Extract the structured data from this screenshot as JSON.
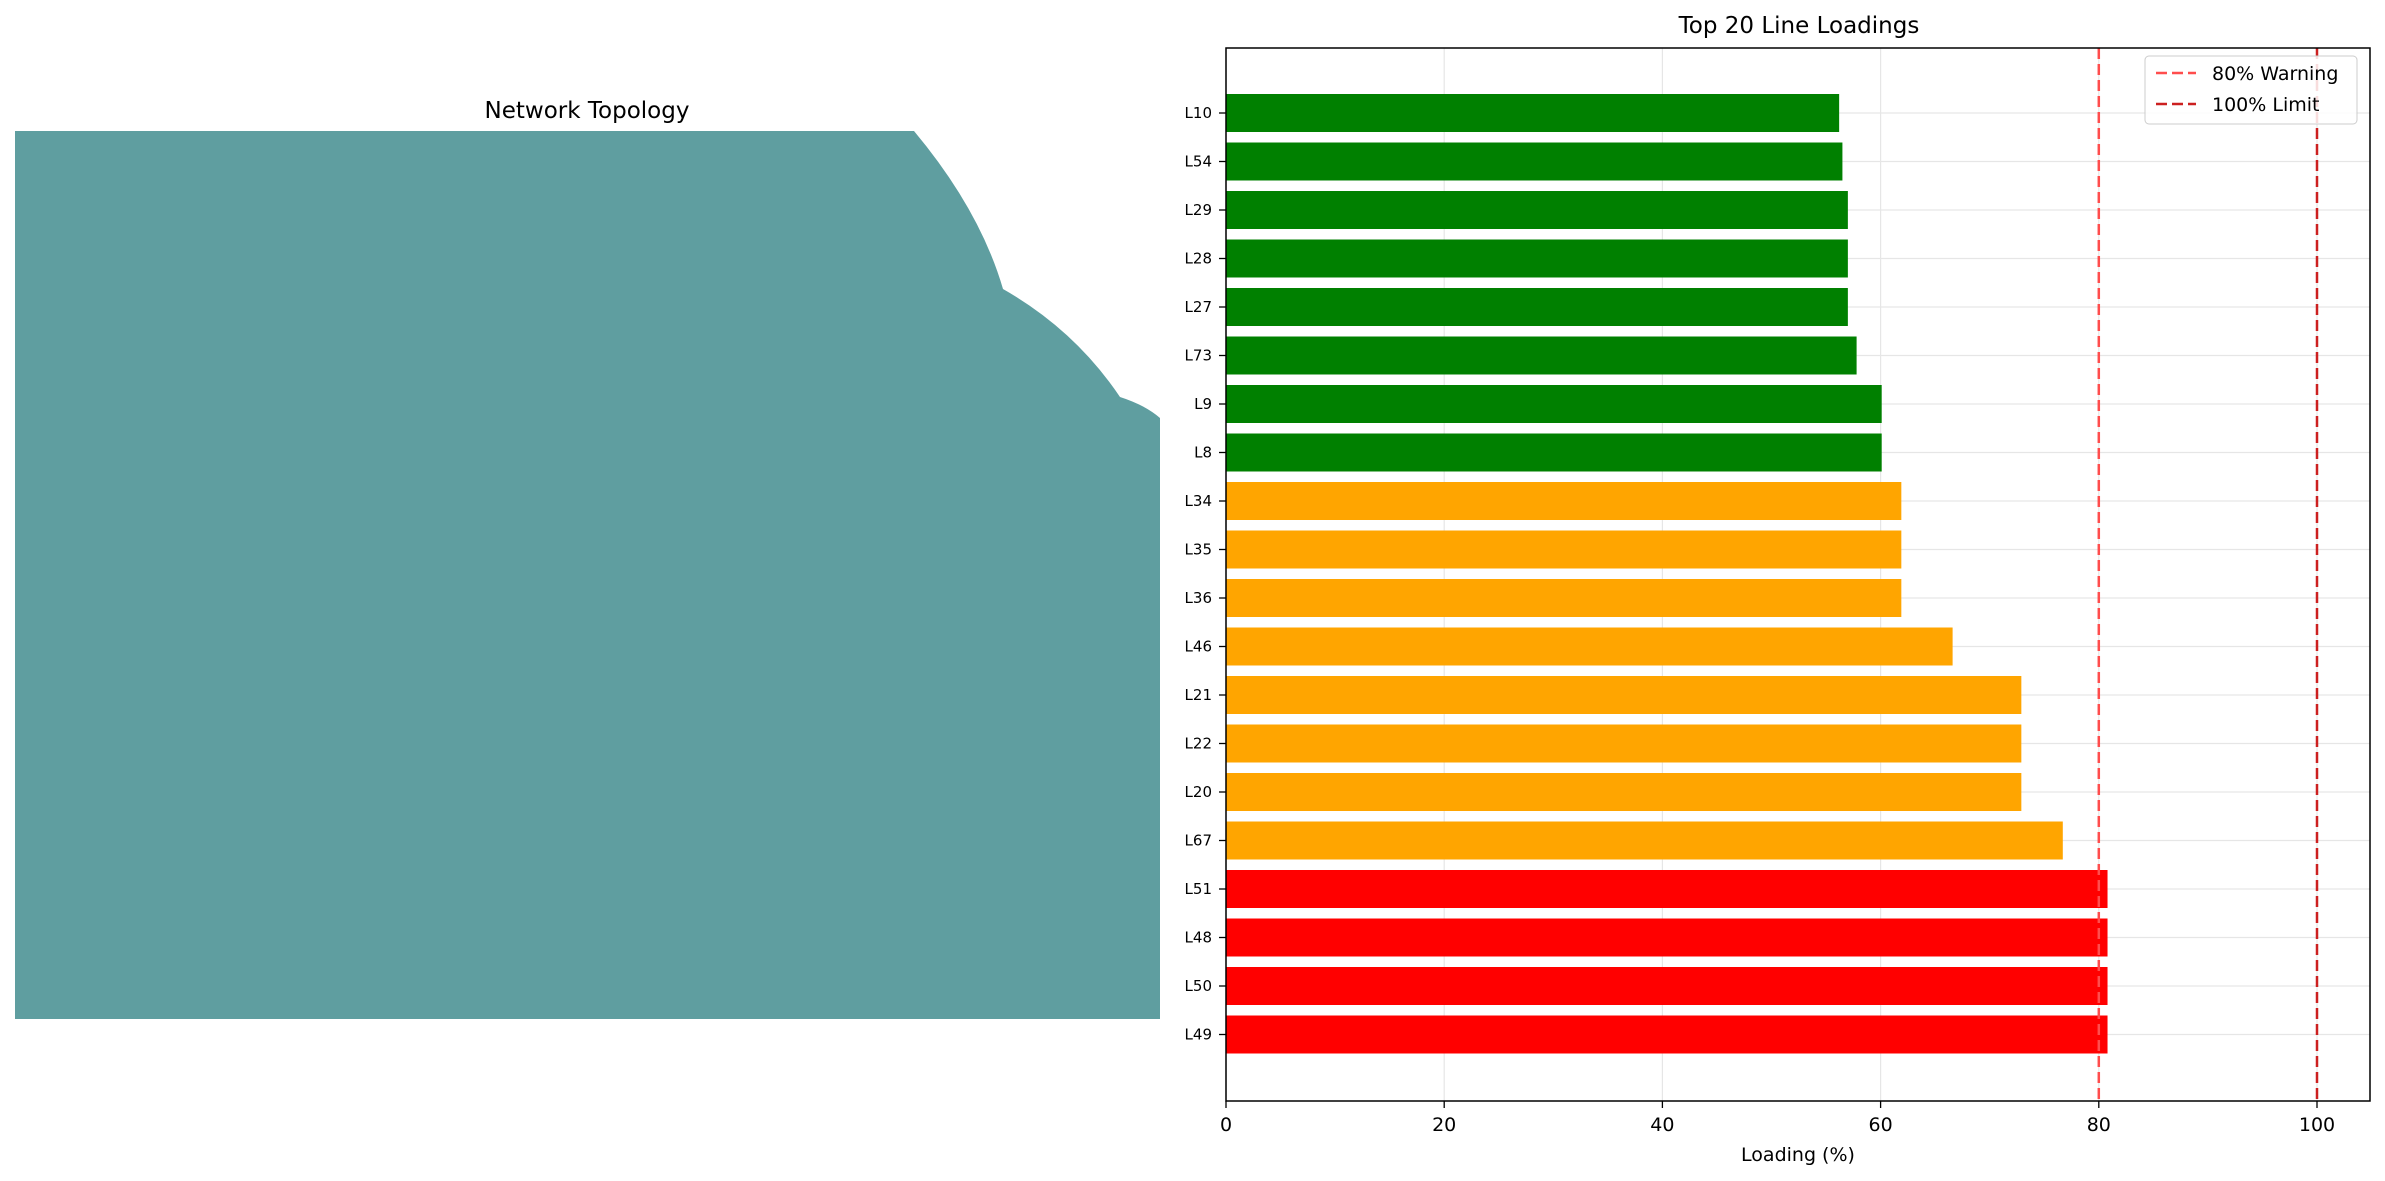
{
  "topology": {
    "title": "Network Topology",
    "fill_color": "#5f9ea0"
  },
  "chart_data": {
    "type": "bar",
    "orientation": "horizontal",
    "title": "Top 20 Line Loadings",
    "xlabel": "Loading (%)",
    "ylabel": "",
    "xlim": [
      0,
      105
    ],
    "xticks": [
      0,
      20,
      40,
      60,
      80,
      100
    ],
    "grid": true,
    "legend_position": "top-right",
    "categories": [
      "L10",
      "L54",
      "L29",
      "L28",
      "L27",
      "L73",
      "L9",
      "L8",
      "L34",
      "L35",
      "L36",
      "L46",
      "L21",
      "L22",
      "L20",
      "L67",
      "L51",
      "L48",
      "L50",
      "L49"
    ],
    "values": [
      56.2,
      56.5,
      57.0,
      57.0,
      57.0,
      57.8,
      60.1,
      60.1,
      61.9,
      61.9,
      61.9,
      66.6,
      72.9,
      72.9,
      72.9,
      76.7,
      80.8,
      80.8,
      80.8,
      80.8
    ],
    "colors": [
      "#008000",
      "#008000",
      "#008000",
      "#008000",
      "#008000",
      "#008000",
      "#008000",
      "#008000",
      "#ffa500",
      "#ffa500",
      "#ffa500",
      "#ffa500",
      "#ffa500",
      "#ffa500",
      "#ffa500",
      "#ffa500",
      "#ff0000",
      "#ff0000",
      "#ff0000",
      "#ff0000"
    ],
    "reference_lines": [
      {
        "label": "80% Warning",
        "value": 80,
        "color": "#ff4d4d",
        "style": "dashed"
      },
      {
        "label": "100% Limit",
        "value": 100,
        "color": "#cc2020",
        "style": "dashed"
      }
    ]
  }
}
